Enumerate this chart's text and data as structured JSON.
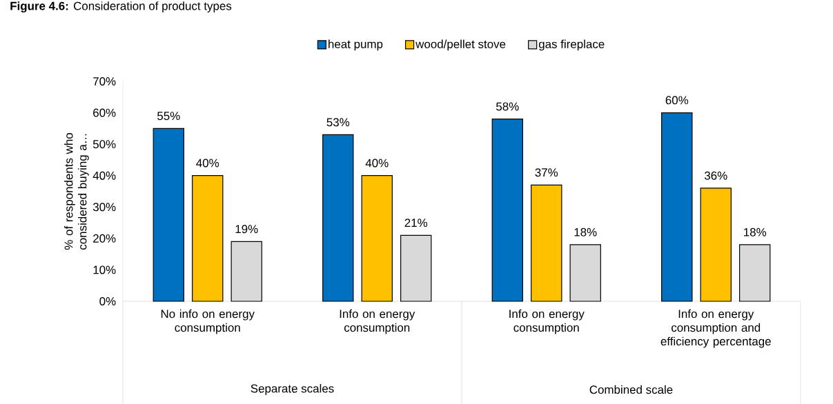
{
  "chart_data": {
    "type": "bar",
    "title": "**Figure 4.6:** Consideration of product types",
    "ylabel": "% of respondents who considered buying a…",
    "categories": [
      "No info on energy consumption",
      "Info on energy consumption",
      "Info on energy consumption",
      "Info on energy consumption and efficiency percentage"
    ],
    "series": [
      {
        "name": "heat pump",
        "color": "#0070c0",
        "values": [
          55,
          53,
          58,
          60
        ],
        "value_labels": [
          "55%",
          "53%",
          "58%",
          "60%"
        ]
      },
      {
        "name": "wood/pellet stove",
        "color": "#ffc000",
        "values": [
          40,
          40,
          37,
          36
        ],
        "value_labels": [
          "40%",
          "40%",
          "37%",
          "36%"
        ]
      },
      {
        "name": "gas fireplace",
        "color": "#d9d9d9",
        "values": [
          19,
          21,
          18,
          18
        ],
        "value_labels": [
          "19%",
          "21%",
          "18%",
          "18%"
        ]
      }
    ],
    "ylim": [
      0,
      70
    ],
    "yticks": [
      {
        "value": 0,
        "label": "0%"
      },
      {
        "value": 10,
        "label": "10%"
      },
      {
        "value": 20,
        "label": "20%"
      },
      {
        "value": 30,
        "label": "30%"
      },
      {
        "value": 40,
        "label": "40%"
      },
      {
        "value": 50,
        "label": "50%"
      },
      {
        "value": 60,
        "label": "60%"
      },
      {
        "value": 70,
        "label": "70%"
      }
    ],
    "annotations": [
      "Separate scales",
      "Combined scale"
    ],
    "legend": "top",
    "grid": false
  }
}
